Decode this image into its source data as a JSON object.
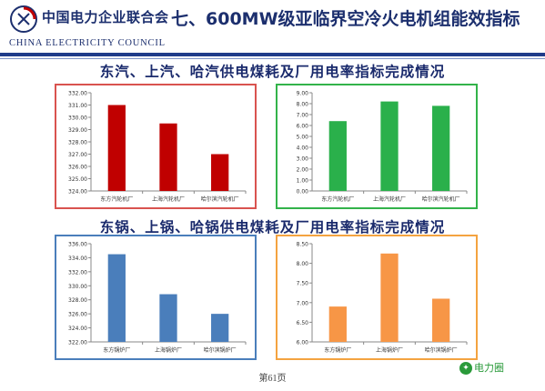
{
  "header": {
    "org_name": "中国电力企业联合会",
    "org_name_en": "CHINA ELECTRICITY COUNCIL",
    "title": "七、600MW级亚临界空冷火电机组能效指标"
  },
  "sections": [
    {
      "title": "东汽、上汽、哈汽供电煤耗及厂用电率指标完成情况"
    },
    {
      "title": "东锅、上锅、哈锅供电煤耗及厂用电率指标完成情况"
    }
  ],
  "page_label": "第61页",
  "watermark": "电力圈",
  "colors": {
    "red": "#c00000",
    "green": "#2ab04b",
    "blue": "#4a7ebb",
    "orange": "#f79646",
    "frame_red": "#d9534f",
    "frame_green": "#33b34a",
    "frame_blue": "#4a7ebb",
    "frame_orange": "#f4a340"
  },
  "chart_data": [
    {
      "type": "bar",
      "categories": [
        "东方汽轮机厂",
        "上海汽轮机厂",
        "哈尔滨汽轮机厂"
      ],
      "values": [
        331.0,
        329.5,
        327.0
      ],
      "ylim": [
        324,
        332
      ],
      "yticks": [
        "324.00",
        "325.00",
        "326.00",
        "327.00",
        "328.00",
        "329.00",
        "330.00",
        "331.00",
        "332.00"
      ],
      "title": "",
      "xlabel": "",
      "ylabel": "",
      "grid": false,
      "legend": "none",
      "color": "#c00000",
      "frame": "#d9534f"
    },
    {
      "type": "bar",
      "categories": [
        "东方汽轮机厂",
        "上海汽轮机厂",
        "哈尔滨汽轮机厂"
      ],
      "values": [
        6.4,
        8.2,
        7.8
      ],
      "ylim": [
        0,
        9
      ],
      "yticks": [
        "0.00",
        "1.00",
        "2.00",
        "3.00",
        "4.00",
        "5.00",
        "6.00",
        "7.00",
        "8.00",
        "9.00"
      ],
      "title": "",
      "xlabel": "",
      "ylabel": "",
      "grid": false,
      "legend": "none",
      "color": "#2ab04b",
      "frame": "#33b34a"
    },
    {
      "type": "bar",
      "categories": [
        "东方锅炉厂",
        "上海锅炉厂",
        "哈尔滨锅炉厂"
      ],
      "values": [
        334.5,
        328.8,
        326.0
      ],
      "ylim": [
        322,
        336
      ],
      "yticks": [
        "322.00",
        "324.00",
        "326.00",
        "328.00",
        "330.00",
        "332.00",
        "334.00",
        "336.00"
      ],
      "title": "",
      "xlabel": "",
      "ylabel": "",
      "grid": false,
      "legend": "none",
      "color": "#4a7ebb",
      "frame": "#4a7ebb"
    },
    {
      "type": "bar",
      "categories": [
        "东方锅炉厂",
        "上海锅炉厂",
        "哈尔滨锅炉厂"
      ],
      "values": [
        6.9,
        8.25,
        7.1
      ],
      "ylim": [
        6,
        8.5
      ],
      "yticks": [
        "6.00",
        "6.50",
        "7.00",
        "7.50",
        "8.00",
        "8.50"
      ],
      "title": "",
      "xlabel": "",
      "ylabel": "",
      "grid": false,
      "legend": "none",
      "color": "#f79646",
      "frame": "#f4a340"
    }
  ]
}
